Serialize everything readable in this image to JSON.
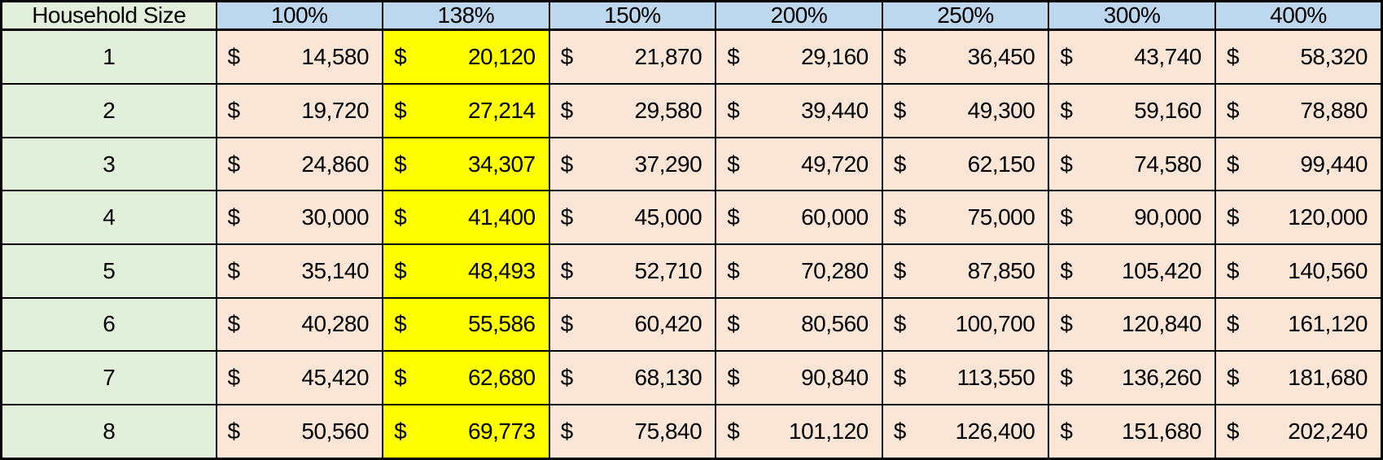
{
  "colors": {
    "percent_header_bg": "#BDD7EE",
    "household_col_bg": "#E2EFDA",
    "income_cell_bg": "#FBE5D6",
    "highlight_cell_bg": "#FFFF00",
    "border": "#000000",
    "text": "#000000"
  },
  "chart_data": {
    "type": "table",
    "columns": [
      "Household Size",
      "100%",
      "138%",
      "150%",
      "200%",
      "250%",
      "300%",
      "400%"
    ],
    "highlighted_column": "138%",
    "currency_symbol": "$",
    "rows": [
      [
        "1",
        14580,
        20120,
        21870,
        29160,
        36450,
        43740,
        58320
      ],
      [
        "2",
        19720,
        27214,
        29580,
        39440,
        49300,
        59160,
        78880
      ],
      [
        "3",
        24860,
        34307,
        37290,
        49720,
        62150,
        74580,
        99440
      ],
      [
        "4",
        30000,
        41400,
        45000,
        60000,
        75000,
        90000,
        120000
      ],
      [
        "5",
        35140,
        48493,
        52710,
        70280,
        87850,
        105420,
        140560
      ],
      [
        "6",
        40280,
        55586,
        60420,
        80560,
        100700,
        120840,
        161120
      ],
      [
        "7",
        45420,
        62680,
        68130,
        90840,
        113550,
        136260,
        181680
      ],
      [
        "8",
        50560,
        69773,
        75840,
        101120,
        126400,
        151680,
        202240
      ]
    ]
  }
}
